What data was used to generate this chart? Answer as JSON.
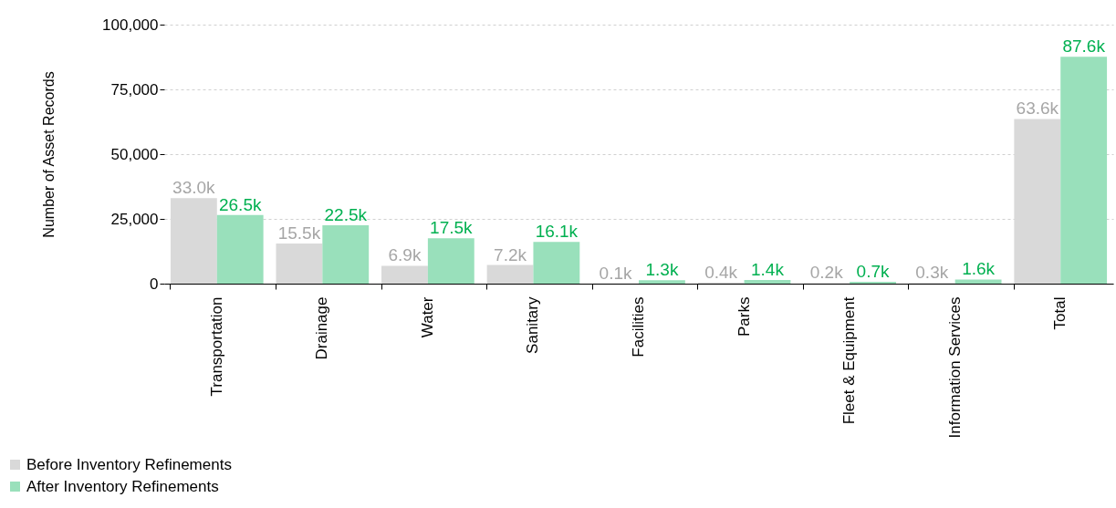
{
  "chart_data": {
    "type": "bar",
    "ylabel": "Number of Asset Records",
    "categories": [
      "Transportation",
      "Drainage",
      "Water",
      "Sanitary",
      "Facilities",
      "Parks",
      "Fleet & Equipment",
      "Information Services",
      "Total"
    ],
    "series": [
      {
        "name": "Before Inventory Refinements",
        "color": "#d9d9d9",
        "values": [
          33000,
          15500,
          6900,
          7200,
          100,
          400,
          200,
          300,
          63600
        ],
        "value_labels": [
          "33.0k",
          "15.5k",
          "6.9k",
          "7.2k",
          "0.1k",
          "0.4k",
          "0.2k",
          "0.3k",
          "63.6k"
        ]
      },
      {
        "name": "After Inventory Refinements",
        "color": "#99e0bb",
        "values": [
          26500,
          22500,
          17500,
          16100,
          1300,
          1400,
          700,
          1600,
          87600
        ],
        "value_labels": [
          "26.5k",
          "22.5k",
          "17.5k",
          "16.1k",
          "1.3k",
          "1.4k",
          "0.7k",
          "1.6k",
          "87.6k"
        ]
      }
    ],
    "ylim": [
      0,
      100000
    ],
    "yticks": [
      0,
      {
        "value": 25000,
        "label": "25,000"
      },
      {
        "value": 50000,
        "label": "50,000"
      },
      {
        "value": 75000,
        "label": "75,000"
      },
      {
        "value": 100000,
        "label": "100,000"
      }
    ],
    "grid": "y",
    "legend": "bottom left"
  }
}
